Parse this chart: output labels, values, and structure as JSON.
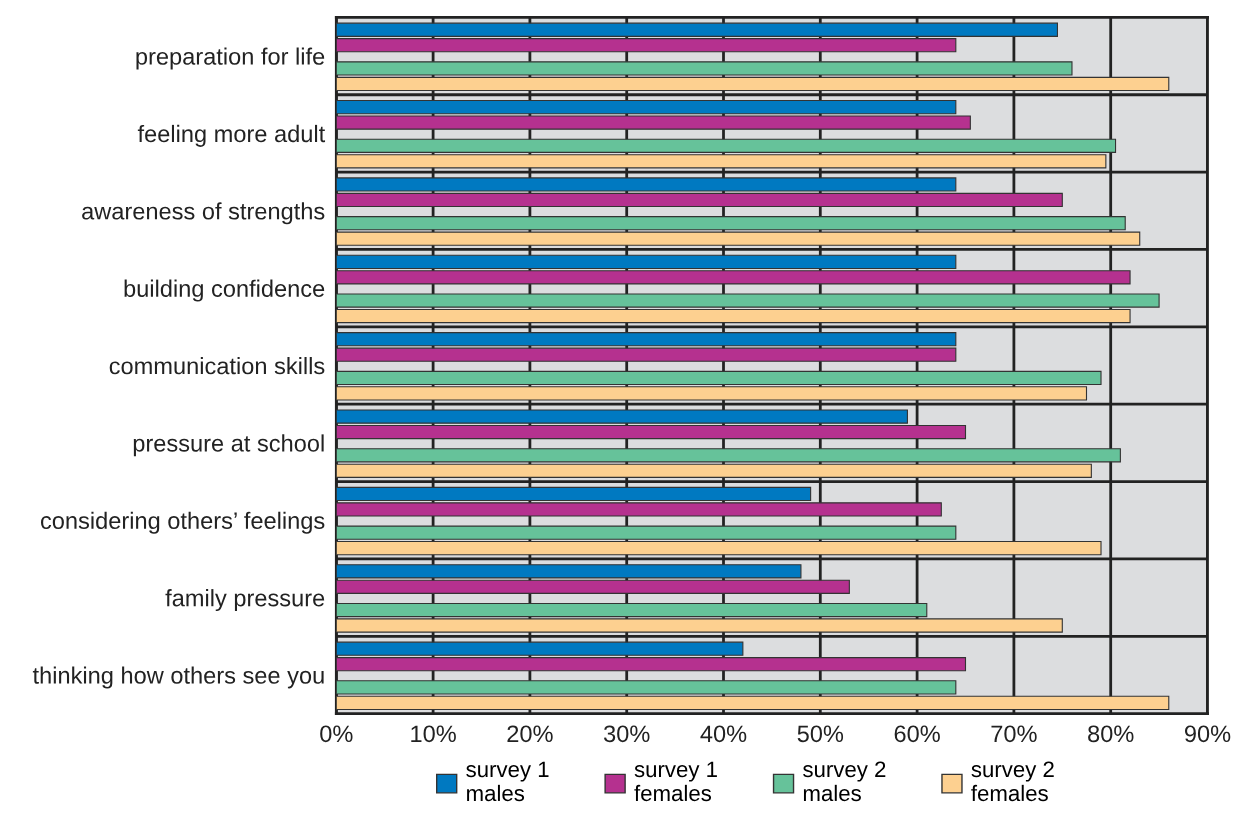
{
  "chart_data": {
    "type": "bar",
    "orientation": "horizontal",
    "categories": [
      "preparation for life",
      "feeling more adult",
      "awareness of strengths",
      "building confidence",
      "communication skills",
      "pressure at school",
      "considering others’ feelings",
      "family pressure",
      "thinking how others see you"
    ],
    "series": [
      {
        "name": "survey 1\nmales",
        "color": "#0079c1",
        "values": [
          74.5,
          64,
          64,
          64,
          64,
          59,
          49,
          48,
          42
        ]
      },
      {
        "name": "survey 1\nfemales",
        "color": "#b5318f",
        "values": [
          64,
          65.5,
          75,
          82,
          64,
          65,
          62.5,
          53,
          65
        ]
      },
      {
        "name": "survey 2\nmales",
        "color": "#66c29a",
        "values": [
          76,
          80.5,
          81.5,
          85,
          79,
          81,
          64,
          61,
          64
        ]
      },
      {
        "name": "survey 2\nfemales",
        "color": "#fdd090",
        "values": [
          86,
          79.5,
          83,
          82,
          77.5,
          78,
          79,
          75,
          86
        ]
      }
    ],
    "xlim": [
      0,
      90
    ],
    "xticks": [
      {
        "value": 0,
        "label": "0%"
      },
      {
        "value": 10,
        "label": "10%"
      },
      {
        "value": 20,
        "label": "20%"
      },
      {
        "value": 30,
        "label": "30%"
      },
      {
        "value": 40,
        "label": "40%"
      },
      {
        "value": 50,
        "label": "50%"
      },
      {
        "value": 60,
        "label": "60%"
      },
      {
        "value": 70,
        "label": "70%"
      },
      {
        "value": 80,
        "label": "80%"
      },
      {
        "value": 90,
        "label": "90%"
      }
    ],
    "grid": true,
    "legend": "bottom"
  }
}
